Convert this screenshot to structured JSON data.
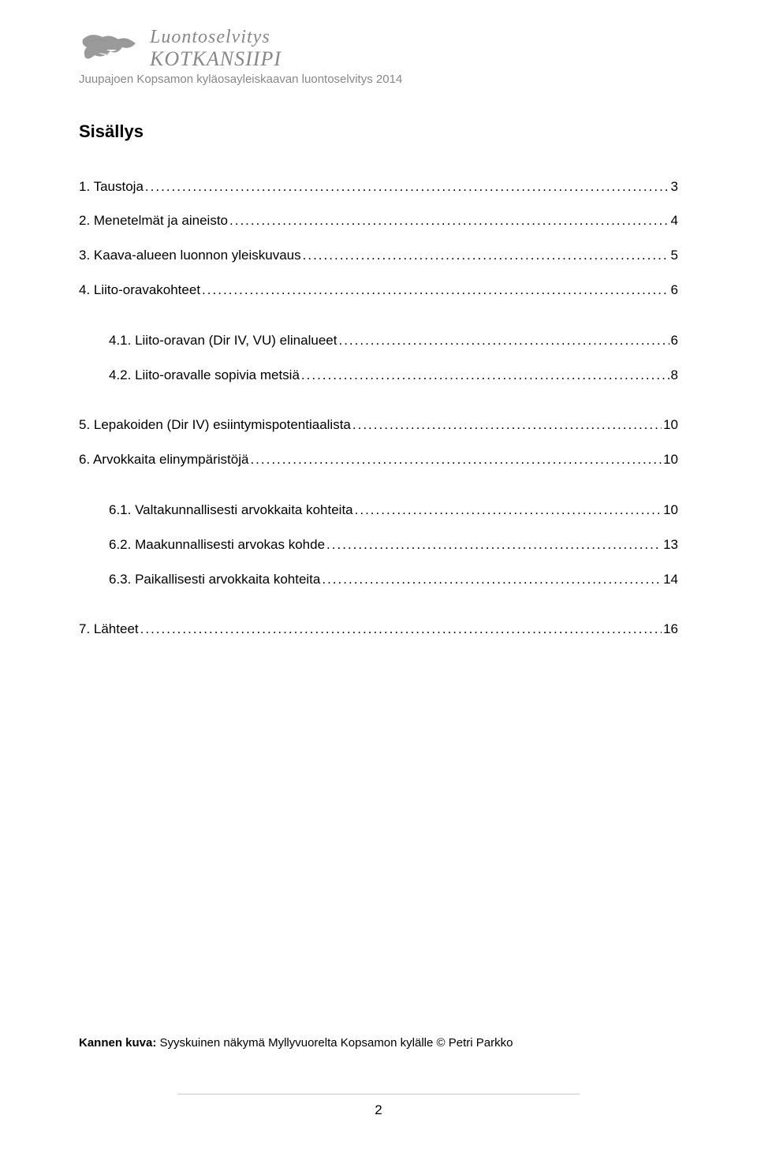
{
  "header": {
    "logo_line1": "Luontoselvitys",
    "logo_line2": "KOTKANSIIPI",
    "subtitle": "Juupajoen Kopsamon kyläosayleiskaavan luontoselvitys 2014"
  },
  "title": "Sisällys",
  "toc": [
    {
      "level": 1,
      "label": "1. Taustoja",
      "page": "3"
    },
    {
      "level": 1,
      "label": "2. Menetelmät ja aineisto",
      "page": "4"
    },
    {
      "level": 1,
      "label": "3. Kaava-alueen luonnon yleiskuvaus",
      "page": "5"
    },
    {
      "level": 1,
      "label": "4. Liito-oravakohteet",
      "page": "6"
    },
    {
      "level": 2,
      "label": "4.1. Liito-oravan (Dir IV, VU) elinalueet",
      "page": "6",
      "gap_before": true
    },
    {
      "level": 2,
      "label": "4.2. Liito-oravalle sopivia metsiä",
      "page": "8"
    },
    {
      "level": 1,
      "label": "5. Lepakoiden (Dir IV) esiintymispotentiaalista",
      "page": "10",
      "gap_before": true
    },
    {
      "level": 1,
      "label": "6. Arvokkaita elinympäristöjä",
      "page": "10"
    },
    {
      "level": 2,
      "label": "6.1. Valtakunnallisesti arvokkaita kohteita",
      "page": "10",
      "gap_before": true
    },
    {
      "level": 2,
      "label": "6.2. Maakunnallisesti arvokas kohde",
      "page": "13"
    },
    {
      "level": 2,
      "label": "6.3. Paikallisesti arvokkaita kohteita",
      "page": "14"
    },
    {
      "level": 1,
      "label": "7. Lähteet",
      "page": "16",
      "gap_before": true
    }
  ],
  "footer": {
    "bold_label": "Kannen kuva:",
    "text": " Syyskuinen näkymä Myllyvuorelta Kopsamon kylälle © Petri Parkko"
  },
  "page_number": "2",
  "colors": {
    "text": "#000000",
    "muted": "#888888",
    "line": "#cccccc",
    "background": "#ffffff"
  }
}
